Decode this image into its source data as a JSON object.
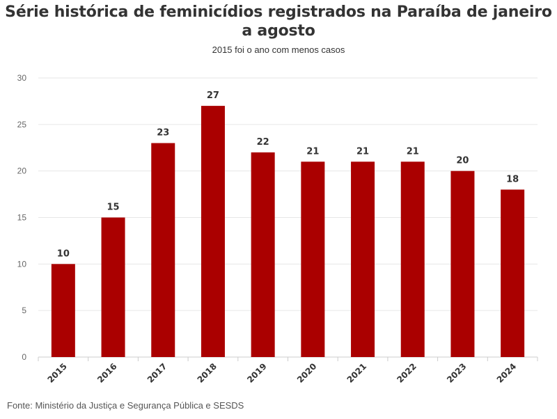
{
  "chart_data": {
    "type": "bar",
    "title": "Série histórica de feminicídios registrados na Paraíba de janeiro a agosto",
    "subtitle": "2015 foi o ano com menos casos",
    "categories": [
      "2015",
      "2016",
      "2017",
      "2018",
      "2019",
      "2020",
      "2021",
      "2022",
      "2023",
      "2024"
    ],
    "values": [
      10,
      15,
      23,
      27,
      22,
      21,
      21,
      21,
      20,
      18
    ],
    "yticks": [
      0,
      5,
      10,
      15,
      20,
      25,
      30
    ],
    "ylim": [
      0,
      30
    ],
    "grid": true,
    "legend": "none",
    "bar_color": "#aa0000",
    "source": "Fonte: Ministério da Justiça e Segurança Pública e SESDS"
  }
}
